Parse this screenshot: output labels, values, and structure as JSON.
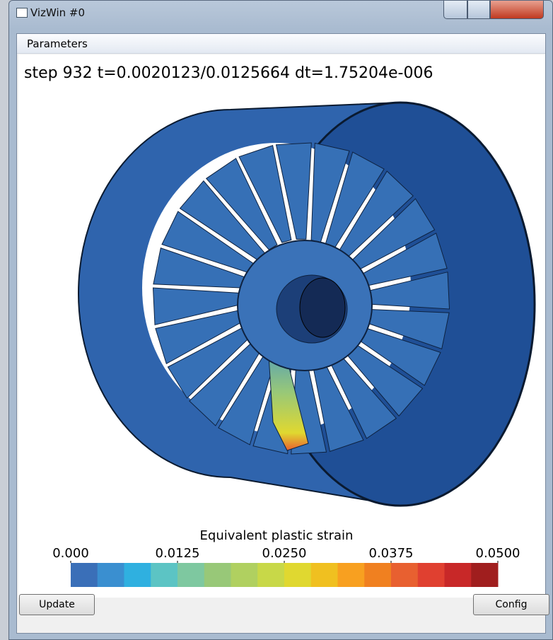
{
  "window": {
    "title": "VizWin #0"
  },
  "menu": {
    "items": [
      "Parameters"
    ]
  },
  "viewport": {
    "status": "step 932  t=0.0020123/0.0125664  dt=1.75204e-006"
  },
  "colorbar": {
    "title": "Equivalent plastic strain",
    "ticks": [
      {
        "value": 0,
        "label": "0.000"
      },
      {
        "value": 0.0125,
        "label": "0.0125"
      },
      {
        "value": 0.025,
        "label": "0.0250"
      },
      {
        "value": 0.0375,
        "label": "0.0375"
      },
      {
        "value": 0.05,
        "label": "0.0500"
      }
    ],
    "colors": [
      "#3a6fb8",
      "#3a8fd0",
      "#2fb0e0",
      "#5cc4c4",
      "#7ec8a0",
      "#98c878",
      "#b0d060",
      "#c8d848",
      "#e0d830",
      "#f0c020",
      "#f8a020",
      "#f08020",
      "#e86030",
      "#e04030",
      "#c82828",
      "#a01e1e"
    ]
  },
  "buttons": [
    "Update",
    "Config"
  ]
}
